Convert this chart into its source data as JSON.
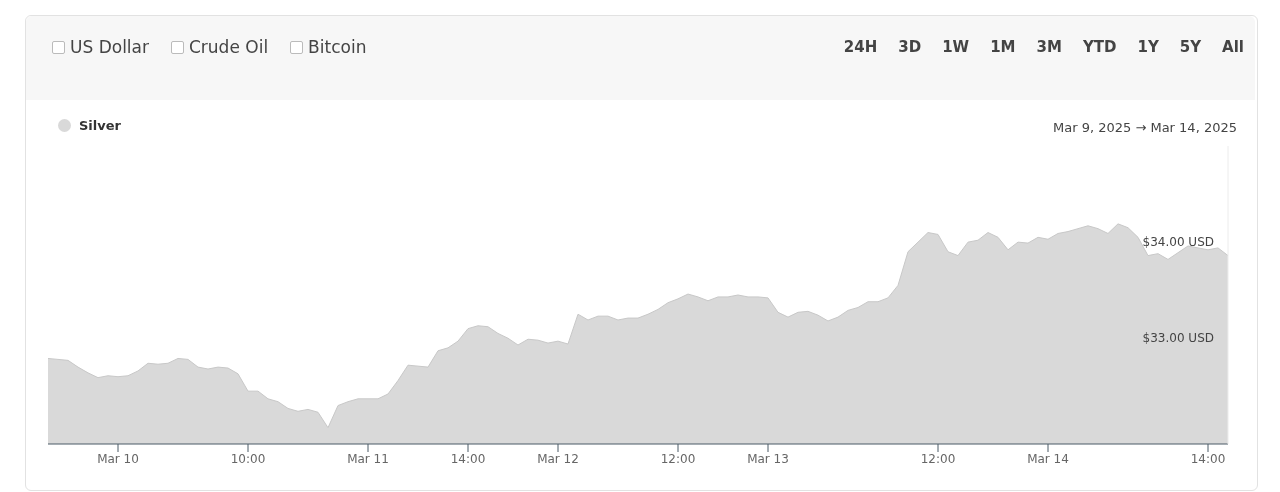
{
  "chart_data": {
    "type": "area",
    "subtitle": "Mar 9, 2025 → Mar 14, 2025",
    "annotations": [
      "US Dollar",
      "Crude Oil",
      "Bitcoin",
      "24H",
      "3D",
      "1W",
      "1M",
      "3M",
      "YTD",
      "1Y",
      "5Y",
      "All"
    ],
    "categories": [
      null,
      null,
      null,
      null,
      null,
      null,
      null,
      "Mar 10",
      null,
      null,
      null,
      null,
      null,
      null,
      null,
      null,
      null,
      null,
      null,
      null,
      "10:00",
      null,
      null,
      null,
      null,
      null,
      null,
      null,
      null,
      null,
      null,
      null,
      "Mar 11",
      null,
      null,
      null,
      null,
      null,
      null,
      null,
      null,
      null,
      "14:00",
      null,
      null,
      null,
      null,
      null,
      null,
      null,
      null,
      "Mar 12",
      null,
      null,
      null,
      null,
      null,
      null,
      null,
      null,
      null,
      null,
      null,
      "12:00",
      null,
      null,
      null,
      null,
      null,
      null,
      null,
      null,
      "Mar 13",
      null,
      null,
      null,
      null,
      null,
      null,
      null,
      null,
      null,
      null,
      null,
      null,
      null,
      null,
      null,
      null,
      "12:00",
      null,
      null,
      null,
      null,
      null,
      null,
      null,
      null,
      null,
      null,
      "Mar 14",
      null,
      null,
      null,
      null,
      null,
      null,
      null,
      null,
      null,
      null,
      null,
      null,
      null,
      null,
      null,
      "14:00",
      null,
      null
    ],
    "series": [
      {
        "name": "Silver",
        "color": "#d9d9d9",
        "values": [
          32.79,
          32.78,
          32.77,
          32.7,
          32.64,
          32.59,
          32.61,
          32.6,
          32.61,
          32.66,
          32.74,
          32.73,
          32.74,
          32.79,
          32.78,
          32.7,
          32.68,
          32.7,
          32.69,
          32.63,
          32.45,
          32.45,
          32.37,
          32.34,
          32.27,
          32.24,
          32.26,
          32.23,
          32.07,
          32.3,
          32.34,
          32.37,
          32.37,
          32.37,
          32.42,
          32.56,
          32.72,
          32.71,
          32.7,
          32.87,
          32.9,
          32.97,
          33.1,
          33.13,
          33.12,
          33.05,
          33.0,
          32.93,
          32.99,
          32.98,
          32.95,
          32.97,
          32.94,
          33.25,
          33.19,
          33.23,
          33.23,
          33.19,
          33.21,
          33.21,
          33.25,
          33.3,
          33.37,
          33.41,
          33.46,
          33.43,
          33.39,
          33.43,
          33.43,
          33.45,
          33.43,
          33.43,
          33.42,
          33.27,
          33.22,
          33.27,
          33.28,
          33.24,
          33.18,
          33.22,
          33.29,
          33.32,
          33.38,
          33.38,
          33.42,
          33.55,
          33.9,
          34.0,
          34.1,
          34.08,
          33.9,
          33.86,
          34.0,
          34.02,
          34.1,
          34.05,
          33.92,
          34.0,
          33.99,
          34.05,
          34.03,
          34.09,
          34.11,
          34.14,
          34.17,
          34.14,
          34.09,
          34.19,
          34.15,
          34.05,
          33.86,
          33.88,
          33.82,
          33.89,
          33.96,
          33.94,
          33.92,
          33.94,
          33.86
        ]
      }
    ],
    "ylim": [
      31.9,
      35
    ],
    "yticks": [
      {
        "value": 33,
        "label": "$33.00 USD"
      },
      {
        "value": 34,
        "label": "$34.00 USD"
      }
    ],
    "grid": false,
    "legend": "top left"
  }
}
